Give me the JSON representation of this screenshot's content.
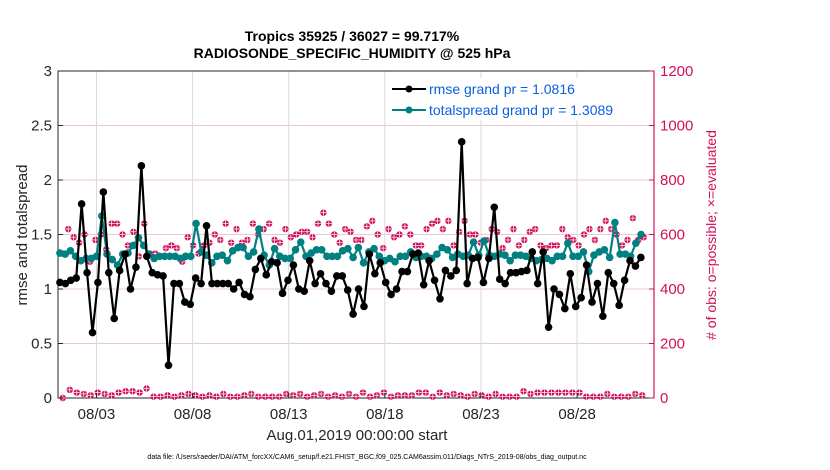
{
  "chart_data": {
    "type": "line",
    "title": "Tropics 35925 / 36027 = 99.717%",
    "subtitle": "RADIOSONDE_SPECIFIC_HUMIDITY @ 525 hPa",
    "xlabel": "Aug.01,2019 00:00:00 start",
    "ylabel": "rmse and totalspread",
    "y2label": "# of obs: o=possible; ×=evaluated",
    "xlim_days": [
      0,
      31
    ],
    "ylim": [
      0,
      3
    ],
    "y2lim": [
      0,
      1200
    ],
    "yticks": [
      "0",
      "0.5",
      "1",
      "1.5",
      "2",
      "2.5",
      "3"
    ],
    "y2ticks": [
      "0",
      "200",
      "400",
      "600",
      "800",
      "1000",
      "1200"
    ],
    "xtick_days": [
      2,
      7,
      12,
      17,
      22,
      27
    ],
    "xticks": [
      "08/03",
      "08/08",
      "08/13",
      "08/18",
      "08/23",
      "08/28"
    ],
    "grid": true,
    "legend_placement": "top-right",
    "footnote": "data file: /Users/raeder/DAI/ATM_forcXX/CAM6_setup/f.e21.FHIST_BGC.f09_025.CAM6assim.011/Diags_NTrS_2019-08/obs_diag_output.nc",
    "colors": {
      "rmse": "#000000",
      "totalspread": "#008080",
      "obs": "#d0105a",
      "legend_text": "#0b5fe0",
      "grid": "#e8c8d4"
    },
    "x_step_days": 0.5,
    "series": [
      {
        "name": "rmse grand pr = 1.0816",
        "axis": "left",
        "values": [
          1.06,
          1.05,
          1.08,
          1.1,
          1.78,
          1.15,
          0.6,
          1.06,
          1.89,
          1.15,
          0.73,
          1.17,
          1.32,
          1.0,
          1.2,
          2.13,
          1.3,
          1.15,
          1.13,
          1.12,
          0.3,
          1.05,
          1.05,
          0.88,
          0.86,
          1.1,
          1.05,
          1.58,
          1.05,
          1.05,
          1.05,
          1.05,
          1.0,
          1.06,
          0.95,
          0.93,
          1.18,
          1.28,
          1.13,
          1.25,
          1.24,
          0.96,
          1.08,
          1.22,
          1.0,
          0.98,
          1.26,
          1.05,
          1.14,
          1.05,
          0.98,
          1.12,
          1.12,
          0.99,
          0.77,
          1.0,
          0.84,
          1.32,
          1.14,
          1.24,
          1.06,
          0.95,
          1.0,
          1.16,
          1.16,
          1.32,
          1.33,
          1.04,
          1.26,
          1.08,
          0.91,
          1.17,
          1.12,
          1.17,
          2.35,
          1.05,
          1.28,
          1.29,
          1.06,
          1.28,
          1.75,
          1.09,
          1.05,
          1.15,
          1.15,
          1.16,
          1.17,
          1.34,
          1.05,
          1.34,
          0.65,
          1.0,
          0.95,
          0.82,
          1.14,
          0.84,
          0.92,
          1.22,
          0.88,
          1.05,
          0.75,
          1.15,
          1.05,
          0.85,
          1.08,
          1.26,
          1.21,
          1.29
        ]
      },
      {
        "name": "totalspread grand pr = 1.3089",
        "axis": "left",
        "values": [
          1.33,
          1.32,
          1.35,
          1.3,
          1.26,
          1.28,
          1.28,
          1.3,
          1.67,
          1.32,
          1.27,
          1.22,
          1.32,
          1.33,
          1.4,
          1.47,
          1.4,
          1.32,
          1.28,
          1.3,
          1.3,
          1.3,
          1.3,
          1.28,
          1.3,
          1.3,
          1.6,
          1.34,
          1.31,
          1.24,
          1.3,
          1.31,
          1.26,
          1.35,
          1.38,
          1.38,
          1.3,
          1.34,
          1.55,
          1.31,
          1.22,
          1.37,
          1.3,
          1.28,
          1.28,
          1.36,
          1.43,
          1.3,
          1.33,
          1.36,
          1.36,
          1.3,
          1.3,
          1.3,
          1.35,
          1.37,
          1.29,
          1.38,
          1.24,
          1.34,
          1.37,
          1.3,
          1.26,
          1.28,
          1.25,
          1.3,
          1.3,
          1.34,
          1.29,
          1.3,
          1.3,
          1.28,
          1.32,
          1.38,
          1.36,
          1.29,
          1.32,
          1.3,
          1.31,
          1.43,
          1.31,
          1.44,
          1.31,
          1.3,
          1.32,
          1.31,
          1.26,
          1.31,
          1.31,
          1.3,
          1.28,
          1.26,
          1.27,
          1.28,
          1.26,
          1.3,
          1.3,
          1.42,
          1.3,
          1.3,
          1.34,
          1.16,
          1.31,
          1.34,
          1.36,
          1.29,
          1.61,
          1.32,
          1.32,
          1.3,
          1.42,
          1.5
        ]
      },
      {
        "name": "obs possible/evaluated (mid-level)",
        "axis": "right",
        "values": [
          530,
          620,
          590,
          570,
          600,
          500,
          580,
          600,
          545,
          640,
          640,
          600,
          560,
          610,
          520,
          640,
          530,
          530,
          520,
          550,
          560,
          550,
          500,
          590,
          560,
          530,
          560,
          570,
          600,
          580,
          640,
          570,
          620,
          570,
          580,
          640,
          600,
          620,
          640,
          580,
          570,
          620,
          590,
          600,
          610,
          610,
          590,
          640,
          680,
          640,
          600,
          570,
          620,
          610,
          580,
          580,
          630,
          650,
          600,
          550,
          620,
          590,
          600,
          630,
          600,
          560,
          560,
          620,
          640,
          650,
          620,
          650,
          560,
          610,
          650,
          600,
          600,
          570,
          580,
          620,
          610,
          550,
          580,
          620,
          560,
          580,
          610,
          620,
          560,
          550,
          560,
          560,
          620,
          590,
          580,
          560,
          600,
          620,
          580,
          620,
          650,
          620,
          600,
          560,
          580,
          660,
          580,
          590
        ]
      },
      {
        "name": "obs near zero row",
        "axis": "right",
        "values": [
          0,
          30,
          20,
          15,
          10,
          20,
          15,
          10,
          20,
          25,
          25,
          20,
          35,
          5,
          5,
          10,
          5,
          10,
          15,
          10,
          5,
          10,
          5,
          15,
          5,
          5,
          10,
          15,
          5,
          5,
          5,
          5,
          15,
          10,
          15,
          5,
          10,
          15,
          5,
          10,
          5,
          15,
          5,
          20,
          5,
          10,
          20,
          5,
          10,
          10,
          10,
          20,
          20,
          5,
          20,
          10,
          15,
          10,
          5,
          15,
          10,
          5,
          15,
          5,
          5,
          5,
          25,
          15,
          20,
          20,
          20,
          20,
          20,
          20,
          20,
          5,
          5,
          5,
          15,
          5,
          5,
          5,
          15,
          10
        ]
      }
    ]
  }
}
